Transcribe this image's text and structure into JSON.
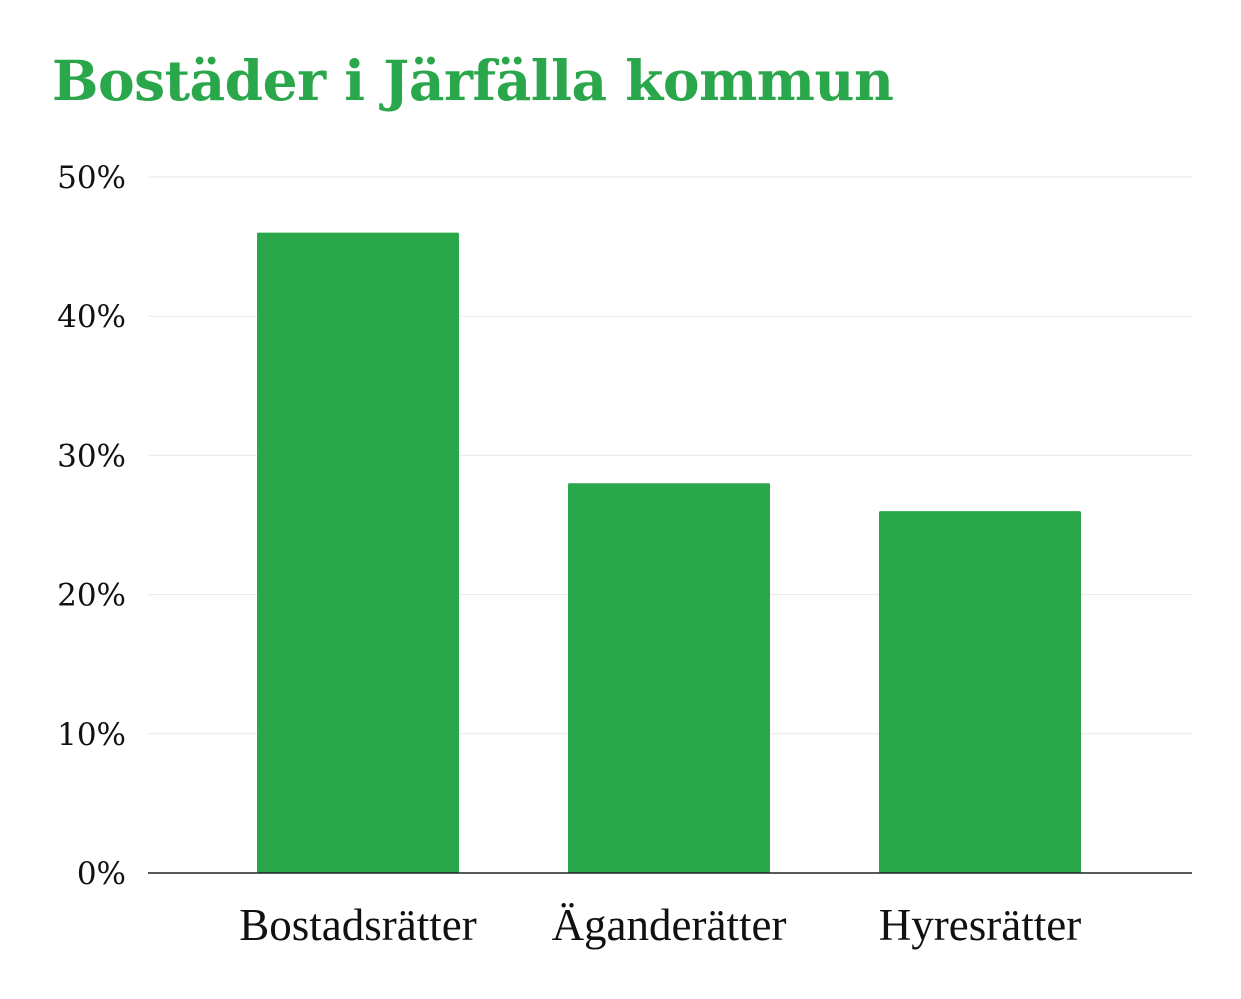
{
  "chart_data": {
    "type": "bar",
    "title": "Bostäder i Järfälla kommun",
    "categories": [
      "Bostadsrätter",
      "Äganderätter",
      "Hyresrätter"
    ],
    "values": [
      46,
      28,
      26
    ],
    "ylim": [
      0,
      50
    ],
    "yticks": [
      0,
      10,
      20,
      30,
      40,
      50
    ],
    "ytick_suffix": "%",
    "grid": true,
    "legend": "none",
    "bar_color": "#2aa64b",
    "title_color": "#2aa64b"
  }
}
